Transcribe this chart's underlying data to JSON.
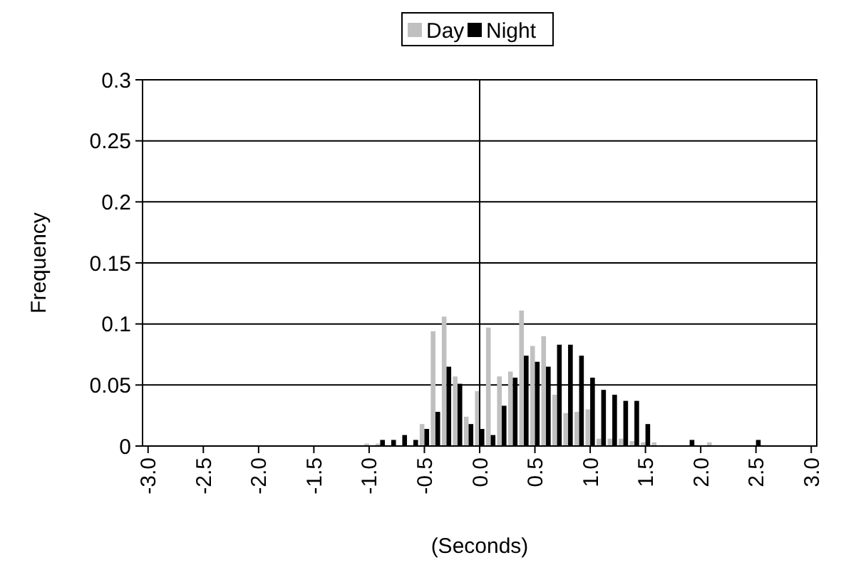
{
  "chart_data": {
    "type": "bar",
    "xlabel": "(Seconds)",
    "ylabel": "Frequency",
    "x": [
      -3.0,
      -2.9,
      -2.8,
      -2.7,
      -2.6,
      -2.5,
      -2.4,
      -2.3,
      -2.2,
      -2.1,
      -2.0,
      -1.9,
      -1.8,
      -1.7,
      -1.6,
      -1.5,
      -1.4,
      -1.3,
      -1.2,
      -1.1,
      -1.0,
      -0.9,
      -0.8,
      -0.7,
      -0.6,
      -0.5,
      -0.4,
      -0.3,
      -0.2,
      -0.1,
      0.0,
      0.1,
      0.2,
      0.3,
      0.4,
      0.5,
      0.6,
      0.7,
      0.8,
      0.9,
      1.0,
      1.1,
      1.2,
      1.3,
      1.4,
      1.5,
      1.6,
      1.7,
      1.8,
      1.9,
      2.0,
      2.1,
      2.2,
      2.3,
      2.4,
      2.5,
      2.6,
      2.7,
      2.8,
      2.9,
      3.0
    ],
    "series": [
      {
        "name": "Day",
        "color": "#c0c0c0",
        "values": [
          0,
          0,
          0,
          0,
          0,
          0,
          0,
          0,
          0,
          0,
          0,
          0,
          0,
          0,
          0,
          0,
          0,
          0,
          0,
          0,
          0.002,
          0.002,
          0,
          0,
          0,
          0.018,
          0.094,
          0.106,
          0.057,
          0.024,
          0.045,
          0.097,
          0.057,
          0.061,
          0.111,
          0.082,
          0.09,
          0.042,
          0.027,
          0.028,
          0.03,
          0.006,
          0.006,
          0.006,
          0.004,
          0.003,
          0.003,
          0,
          0,
          0,
          0,
          0.003,
          0,
          0,
          0,
          0,
          0,
          0,
          0,
          0,
          0
        ]
      },
      {
        "name": "Night",
        "color": "#000000",
        "values": [
          0,
          0,
          0,
          0,
          0,
          0,
          0,
          0,
          0,
          0,
          0,
          0,
          0,
          0,
          0,
          0,
          0,
          0,
          0,
          0,
          0,
          0.005,
          0.005,
          0.009,
          0.005,
          0.014,
          0.028,
          0.065,
          0.051,
          0.018,
          0.014,
          0.009,
          0.033,
          0.056,
          0.074,
          0.069,
          0.065,
          0.083,
          0.083,
          0.074,
          0.056,
          0.046,
          0.042,
          0.037,
          0.037,
          0.018,
          0,
          0,
          0,
          0.005,
          0,
          0,
          0,
          0,
          0,
          0.005,
          0,
          0,
          0,
          0,
          0
        ]
      }
    ],
    "xlim": [
      -3.05,
      3.05
    ],
    "xticks": [
      {
        "value": -3,
        "label": "-3.0"
      },
      {
        "value": -2.5,
        "label": "-2.5"
      },
      {
        "value": -2,
        "label": "-2.0"
      },
      {
        "value": -1.5,
        "label": "-1.5"
      },
      {
        "value": -1,
        "label": "-1.0"
      },
      {
        "value": -0.5,
        "label": "-0.5"
      },
      {
        "value": 0,
        "label": "0.0"
      },
      {
        "value": 0.5,
        "label": "0.5"
      },
      {
        "value": 1,
        "label": "1.0"
      },
      {
        "value": 1.5,
        "label": "1.5"
      },
      {
        "value": 2,
        "label": "2.0"
      },
      {
        "value": 2.5,
        "label": "2.5"
      },
      {
        "value": 3,
        "label": "3.0"
      }
    ],
    "ylim": [
      0,
      0.3
    ],
    "yticks": [
      0,
      0.05,
      0.1,
      0.15,
      0.2,
      0.25,
      0.3
    ],
    "ref_lines": [
      {
        "axis": "x",
        "value": 0,
        "color": "#000000"
      }
    ],
    "grid": "y",
    "legend": "top"
  }
}
